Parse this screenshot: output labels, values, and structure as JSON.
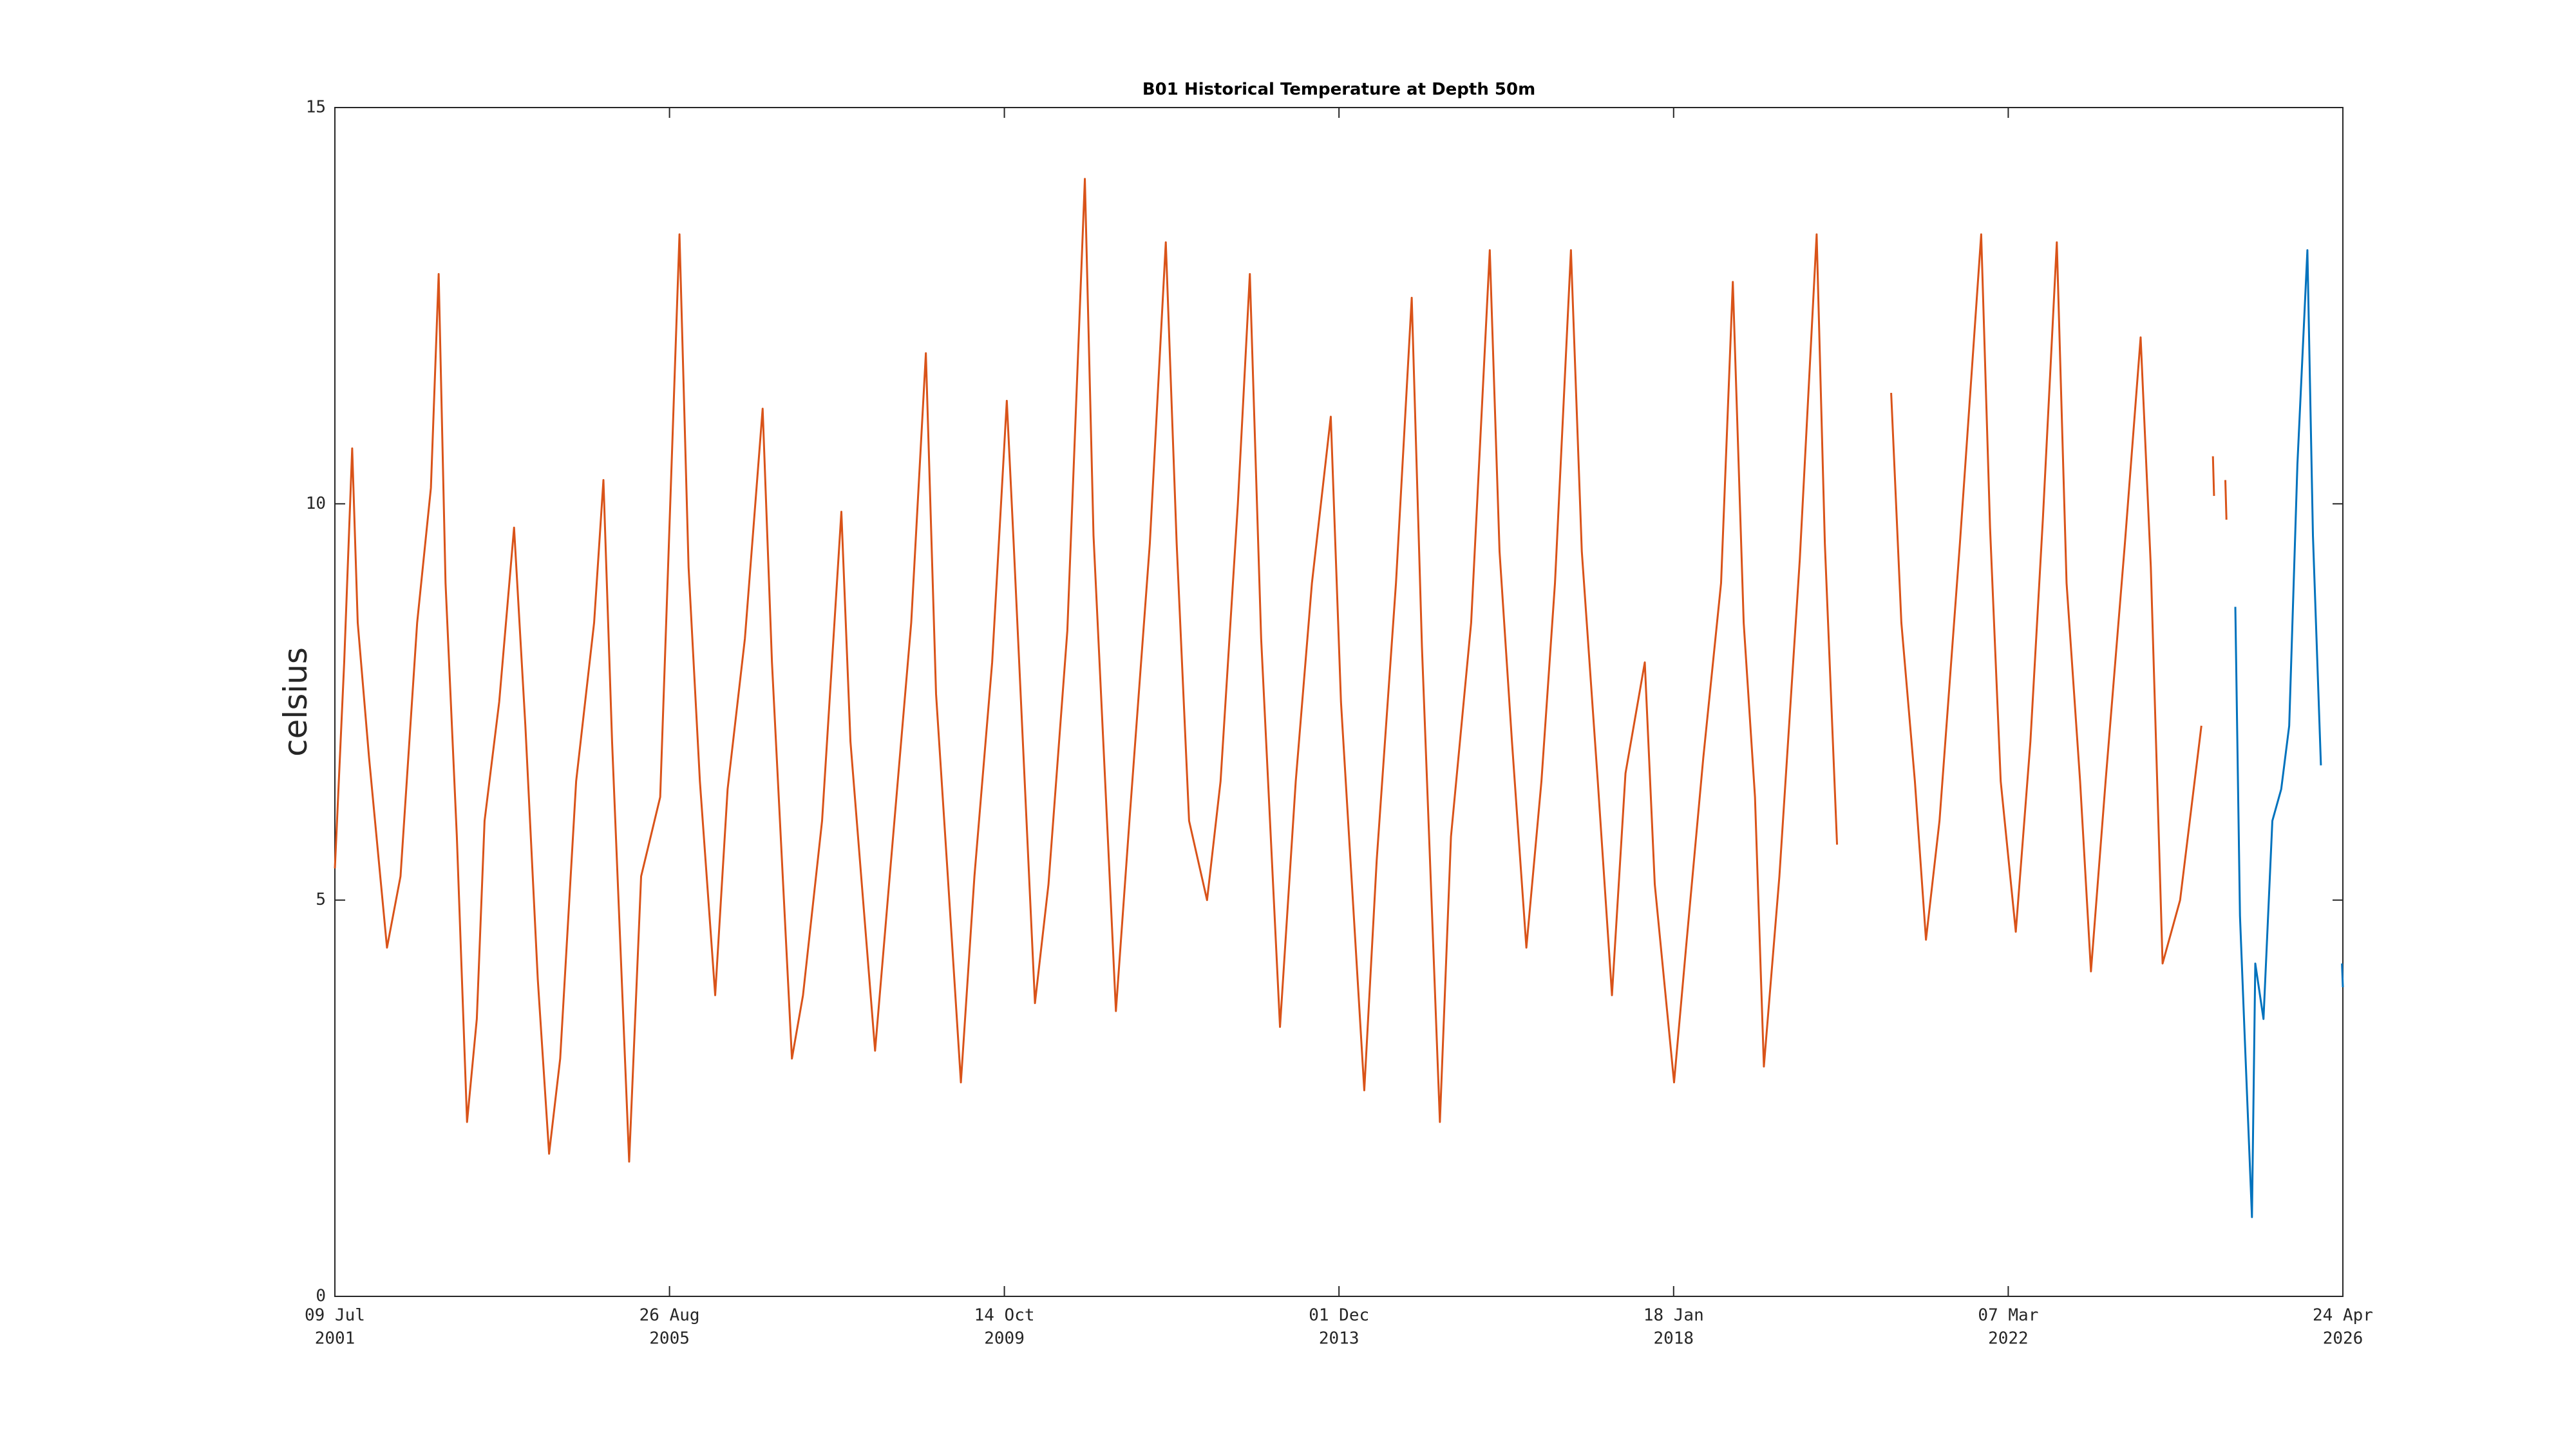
{
  "chart_data": {
    "type": "line",
    "title": "B01 Historical Temperature at Depth 50m",
    "y_label": "celsius",
    "xlim": [
      "2001-07-09",
      "2026-04-24"
    ],
    "xticks": [
      {
        "value": "2001-07-09",
        "label": [
          "09 Jul",
          "2001"
        ]
      },
      {
        "value": "2005-08-26",
        "label": [
          "26 Aug",
          "2005"
        ]
      },
      {
        "value": "2009-10-14",
        "label": [
          "14 Oct",
          "2009"
        ]
      },
      {
        "value": "2013-12-01",
        "label": [
          "01 Dec",
          "2013"
        ]
      },
      {
        "value": "2018-01-18",
        "label": [
          "18 Jan",
          "2018"
        ]
      },
      {
        "value": "2022-03-07",
        "label": [
          "07 Mar",
          "2022"
        ]
      },
      {
        "value": "2026-04-24",
        "label": [
          "24 Apr",
          "2026"
        ]
      }
    ],
    "ylim": [
      0,
      15
    ],
    "yticks": [
      0,
      5,
      10,
      15
    ],
    "grid": false,
    "series": [
      {
        "color": "#d95319",
        "x": [
          "2001-07-09",
          "2001-08-20",
          "2001-09-25",
          "2001-10-20",
          "2001-12-10",
          "2002-03-01",
          "2002-05-01",
          "2002-07-15",
          "2002-09-15",
          "2002-10-20",
          "2002-11-20",
          "2003-01-10",
          "2003-02-25",
          "2003-04-10",
          "2003-05-15",
          "2003-07-20",
          "2003-09-25",
          "2003-11-15",
          "2004-01-10",
          "2004-03-01",
          "2004-04-20",
          "2004-07-01",
          "2004-09-20",
          "2004-11-01",
          "2004-12-10",
          "2005-02-25",
          "2005-04-20",
          "2005-07-15",
          "2005-10-10",
          "2005-11-20",
          "2006-01-10",
          "2006-03-20",
          "2006-05-15",
          "2006-08-01",
          "2006-10-20",
          "2006-12-01",
          "2007-03-01",
          "2007-04-20",
          "2007-07-15",
          "2007-10-10",
          "2007-11-20",
          "2008-03-10",
          "2008-05-15",
          "2008-08-20",
          "2008-10-25",
          "2008-12-10",
          "2009-02-01",
          "2009-04-01",
          "2009-06-01",
          "2009-08-20",
          "2009-10-25",
          "2009-11-25",
          "2010-03-01",
          "2010-05-01",
          "2010-07-25",
          "2010-10-12",
          "2010-11-20",
          "2011-01-20",
          "2011-03-01",
          "2011-05-01",
          "2011-08-01",
          "2011-10-12",
          "2011-11-30",
          "2012-01-25",
          "2012-04-15",
          "2012-06-15",
          "2012-09-01",
          "2012-10-25",
          "2012-12-15",
          "2013-03-10",
          "2013-05-20",
          "2013-08-01",
          "2013-10-25",
          "2013-12-10",
          "2014-03-25",
          "2014-05-20",
          "2014-08-15",
          "2014-10-25",
          "2014-12-10",
          "2015-03-01",
          "2015-04-20",
          "2015-07-20",
          "2015-10-12",
          "2015-11-25",
          "2016-01-20",
          "2016-03-25",
          "2016-06-01",
          "2016-08-01",
          "2016-10-12",
          "2016-11-30",
          "2017-02-10",
          "2017-04-15",
          "2017-06-15",
          "2017-09-10",
          "2017-10-25",
          "2018-01-20",
          "2018-03-15",
          "2018-06-01",
          "2018-08-20",
          "2018-10-12",
          "2018-11-30",
          "2019-01-20",
          "2019-03-01",
          "2019-05-10",
          "2019-08-10",
          "2019-10-25",
          "2019-12-01",
          "2020-01-25",
          "2020-06-01",
          "2020-09-25",
          "2020-11-10",
          "2021-01-10",
          "2021-03-01",
          "2021-05-01",
          "2021-08-01",
          "2021-11-05",
          "2021-12-15",
          "2022-02-01",
          "2022-04-10",
          "2022-06-15",
          "2022-08-10",
          "2022-10-12",
          "2022-11-25",
          "2023-01-25",
          "2023-03-15",
          "2023-05-20",
          "2023-08-15",
          "2023-10-25",
          "2023-12-10",
          "2024-02-01",
          "2024-04-20",
          "2024-07-25",
          "2024-09-01",
          "2024-09-15",
          "2024-09-20",
          "2024-10-15",
          "2024-11-10",
          "2024-11-15"
        ],
        "values": [
          5.4,
          8.0,
          10.7,
          8.5,
          6.8,
          4.4,
          5.3,
          8.5,
          10.2,
          12.9,
          9.0,
          5.8,
          2.2,
          3.5,
          6.0,
          7.5,
          9.7,
          7.2,
          4.0,
          1.8,
          3.0,
          6.5,
          8.5,
          10.3,
          7.0,
          1.7,
          5.3,
          6.3,
          13.4,
          9.2,
          6.5,
          3.8,
          6.4,
          8.3,
          11.2,
          8.0,
          3.0,
          3.8,
          6.0,
          9.9,
          7.0,
          3.1,
          5.3,
          8.5,
          11.9,
          7.6,
          5.3,
          2.7,
          5.3,
          8.0,
          11.3,
          9.5,
          3.7,
          5.2,
          8.4,
          14.1,
          9.6,
          6.0,
          3.6,
          6.0,
          9.5,
          13.3,
          9.5,
          6.0,
          5.0,
          6.5,
          10.0,
          12.9,
          8.3,
          3.4,
          6.5,
          9.0,
          11.1,
          7.5,
          2.6,
          5.5,
          9.0,
          12.6,
          8.2,
          2.2,
          5.8,
          8.5,
          13.2,
          9.4,
          7.0,
          4.4,
          6.5,
          9.0,
          13.2,
          9.4,
          6.5,
          3.8,
          6.6,
          8.0,
          5.2,
          2.7,
          4.4,
          6.8,
          9.0,
          12.8,
          8.5,
          6.3,
          2.9,
          5.3,
          9.3,
          13.4,
          9.5,
          5.7,
          null,
          11.4,
          8.5,
          6.5,
          4.5,
          6.0,
          9.5,
          13.4,
          9.7,
          6.5,
          4.6,
          7.0,
          9.8,
          13.3,
          9.0,
          6.5,
          4.1,
          6.5,
          9.5,
          12.1,
          9.2,
          4.2,
          5.0,
          7.2,
          null,
          10.6,
          10.1,
          null,
          10.3,
          9.8
        ]
      },
      {
        "color": "#0072bd",
        "x": [
          "2024-12-25",
          "2025-01-15",
          "2025-02-05",
          "2025-03-10",
          "2025-03-25",
          "2025-05-01",
          "2025-06-10",
          "2025-07-20",
          "2025-08-25",
          "2025-10-01",
          "2025-11-15",
          "2025-12-10",
          "2026-01-15",
          "2026-03-01",
          "2026-04-20",
          "2026-04-24"
        ],
        "values": [
          8.7,
          4.8,
          3.3,
          1.0,
          4.2,
          3.5,
          6.0,
          6.4,
          7.2,
          10.5,
          13.2,
          9.6,
          6.7,
          null,
          4.2,
          3.9
        ]
      }
    ]
  }
}
